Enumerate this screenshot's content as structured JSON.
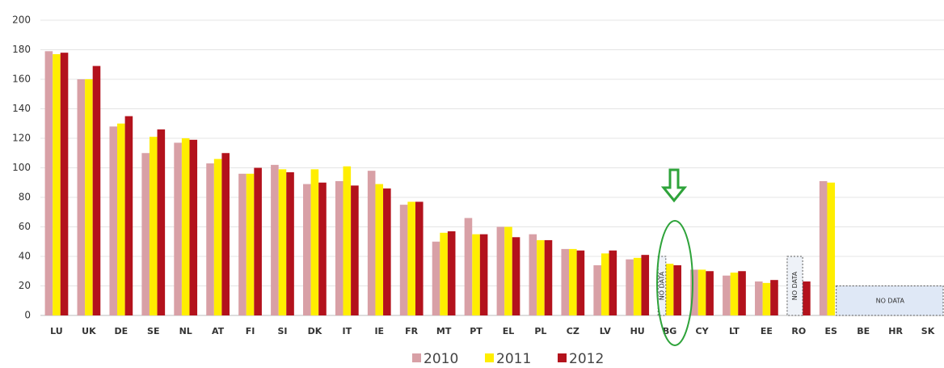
{
  "chart_data": {
    "type": "bar",
    "categories": [
      "LU",
      "UK",
      "DE",
      "SE",
      "NL",
      "AT",
      "FI",
      "SI",
      "DK",
      "IT",
      "IE",
      "FR",
      "MT",
      "PT",
      "EL",
      "PL",
      "CZ",
      "LV",
      "HU",
      "BG",
      "CY",
      "LT",
      "EE",
      "RO",
      "ES",
      "BE",
      "HR",
      "SK"
    ],
    "series": [
      {
        "name": "2010",
        "color": "#d8a0a6",
        "values": [
          179,
          160,
          128,
          110,
          117,
          103,
          96,
          102,
          89,
          91,
          98,
          75,
          50,
          66,
          60,
          55,
          45,
          34,
          38,
          null,
          31,
          27,
          23,
          null,
          91,
          null,
          null,
          null
        ]
      },
      {
        "name": "2011",
        "color": "#ffee00",
        "values": [
          177,
          160,
          130,
          121,
          120,
          106,
          96,
          99,
          99,
          101,
          89,
          77,
          56,
          55,
          60,
          51,
          45,
          42,
          39,
          35,
          31,
          29,
          22,
          null,
          90,
          null,
          null,
          null
        ]
      },
      {
        "name": "2012",
        "color": "#b3121c",
        "values": [
          178,
          169,
          135,
          126,
          119,
          110,
          100,
          97,
          90,
          88,
          86,
          77,
          57,
          55,
          53,
          51,
          44,
          44,
          41,
          34,
          30,
          30,
          24,
          23,
          null,
          null,
          null,
          null
        ]
      }
    ],
    "annotations": [
      {
        "text": "NO DATA",
        "category": "BG"
      },
      {
        "text": "NO DATA",
        "category": "RO"
      },
      {
        "text": "NO DATA",
        "category": "BE"
      }
    ],
    "ylim": [
      0,
      200
    ],
    "yticks": [
      0,
      20,
      40,
      60,
      80,
      100,
      120,
      140,
      160,
      180,
      200
    ],
    "grid": true,
    "legend": "bottom"
  }
}
